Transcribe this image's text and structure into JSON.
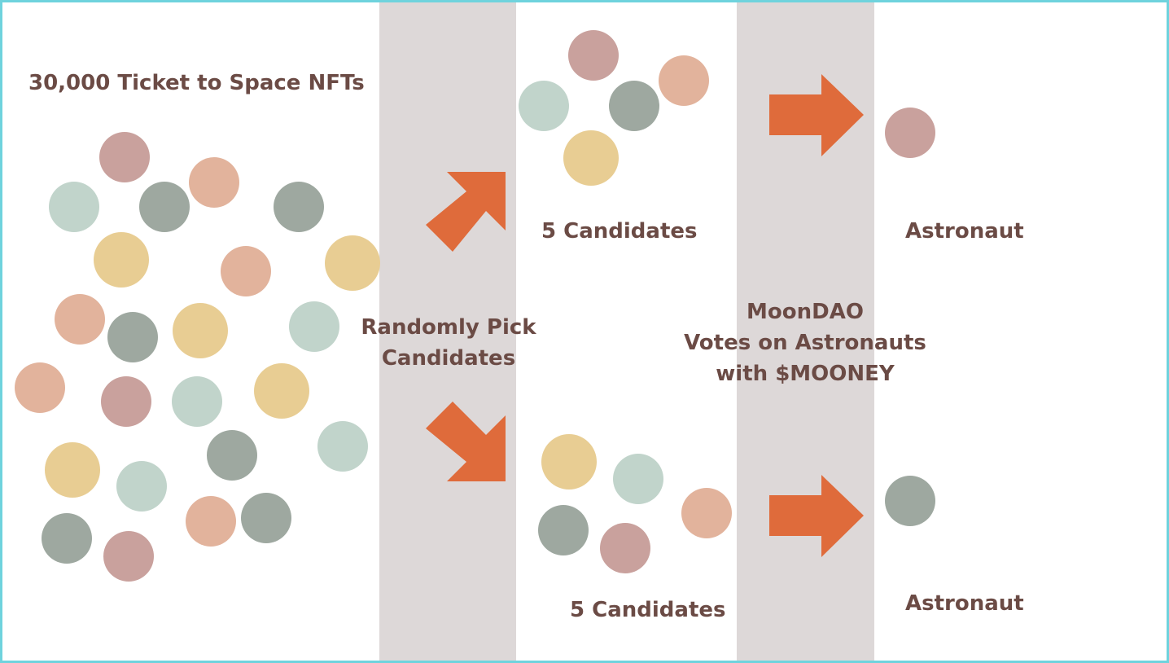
{
  "title": "30,000 Ticket to Space NFTs",
  "pick_label": [
    "Randomly Pick",
    "Candidates"
  ],
  "vote_label": [
    "MoonDAO",
    "Votes on Astronauts",
    "with $MOONEY"
  ],
  "candidates_top": "5 Candidates",
  "candidates_bottom": "5 Candidates",
  "astronaut_top": "Astronaut",
  "astronaut_bottom": "Astronaut",
  "colors": {
    "rose": "#c9a19d",
    "peach": "#e2b39c",
    "mint": "#c1d4cb",
    "sage": "#9ea8a0",
    "sand": "#e8cd93",
    "arrow": "#df6b3b",
    "band": "#ddd8d8",
    "text": "#6b4b45",
    "border": "#6fd3dd"
  },
  "pool_dots": [
    "rose",
    "mint",
    "sage",
    "peach",
    "sage",
    "sand",
    "peach",
    "sand",
    "peach",
    "sage",
    "sand",
    "mint",
    "peach",
    "rose",
    "mint",
    "sand",
    "mint",
    "sage",
    "sand",
    "mint",
    "peach",
    "sage",
    "sage",
    "rose"
  ],
  "candidates_top_dots": [
    "rose",
    "mint",
    "sage",
    "peach",
    "sand"
  ],
  "candidates_bottom_dots": [
    "sand",
    "mint",
    "sage",
    "rose",
    "peach"
  ],
  "astronaut_top_dot": "rose",
  "astronaut_bottom_dot": "sage",
  "icons": [
    "arrow-up-right-icon",
    "arrow-down-right-icon",
    "arrow-right-icon"
  ]
}
